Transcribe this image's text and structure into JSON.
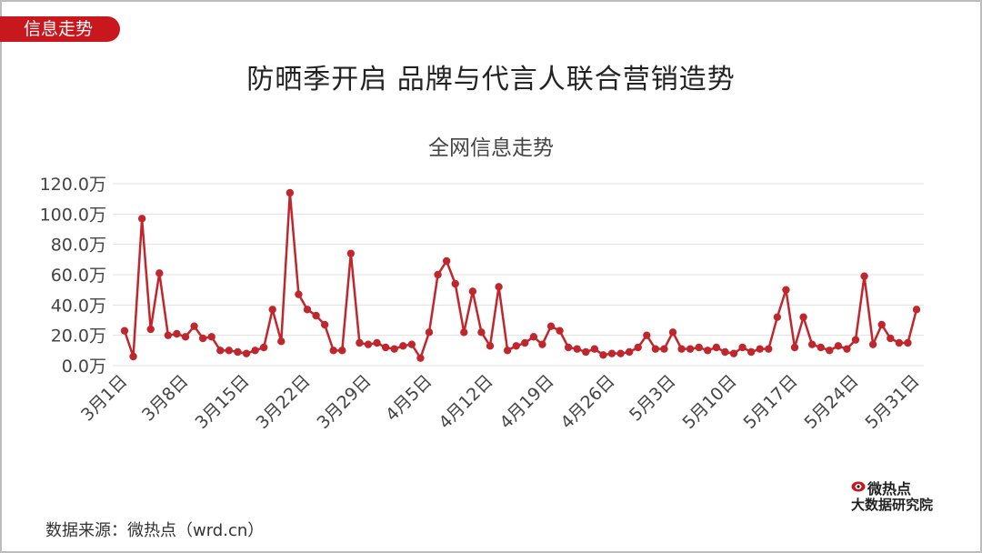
{
  "tag": "信息走势",
  "main_title": "防晒季开启 品牌与代言人联合营销造势",
  "source": "数据来源：微热点（wrd.cn）",
  "logo": {
    "top": "微热点",
    "bottom": "大数据研究院",
    "icon": "weibo-eye-icon"
  },
  "colors": {
    "accent": "#c8181e",
    "line": "#c0272d",
    "grid": "#e0e0e0"
  },
  "chart_data": {
    "type": "line",
    "title": "全网信息走势",
    "xlabel": "",
    "ylabel": "",
    "ylim": [
      0,
      120
    ],
    "y_ticks": [
      "0.0万",
      "20.0万",
      "40.0万",
      "60.0万",
      "80.0万",
      "100.0万",
      "120.0万"
    ],
    "x_ticks": [
      "3月1日",
      "3月8日",
      "3月15日",
      "3月22日",
      "3月29日",
      "4月5日",
      "4月12日",
      "4月19日",
      "4月26日",
      "5月3日",
      "5月10日",
      "5月17日",
      "5月24日",
      "5月31日"
    ],
    "grid": true,
    "legend": "none",
    "series": [
      {
        "unit": "万",
        "x": [
          "3月1日",
          "3月2日",
          "3月3日",
          "3月4日",
          "3月5日",
          "3月6日",
          "3月7日",
          "3月8日",
          "3月9日",
          "3月10日",
          "3月11日",
          "3月12日",
          "3月13日",
          "3月14日",
          "3月15日",
          "3月16日",
          "3月17日",
          "3月18日",
          "3月19日",
          "3月20日",
          "3月21日",
          "3月22日",
          "3月23日",
          "3月24日",
          "3月25日",
          "3月26日",
          "3月27日",
          "3月28日",
          "3月29日",
          "3月30日",
          "3月31日",
          "4月1日",
          "4月2日",
          "4月3日",
          "4月4日",
          "4月5日",
          "4月6日",
          "4月7日",
          "4月8日",
          "4月9日",
          "4月10日",
          "4月11日",
          "4月12日",
          "4月13日",
          "4月14日",
          "4月15日",
          "4月16日",
          "4月17日",
          "4月18日",
          "4月19日",
          "4月20日",
          "4月21日",
          "4月22日",
          "4月23日",
          "4月24日",
          "4月25日",
          "4月26日",
          "4月27日",
          "4月28日",
          "4月29日",
          "4月30日",
          "5月1日",
          "5月2日",
          "5月3日",
          "5月4日",
          "5月5日",
          "5月6日",
          "5月7日",
          "5月8日",
          "5月9日",
          "5月10日",
          "5月11日",
          "5月12日",
          "5月13日",
          "5月14日",
          "5月15日",
          "5月16日",
          "5月17日",
          "5月18日",
          "5月19日",
          "5月20日",
          "5月21日",
          "5月22日",
          "5月23日",
          "5月24日",
          "5月25日",
          "5月26日",
          "5月27日",
          "5月28日",
          "5月29日",
          "5月30日",
          "5月31日"
        ],
        "values": [
          23,
          6,
          97,
          24,
          61,
          20,
          21,
          19,
          26,
          18,
          19,
          10,
          10,
          9,
          8,
          10,
          12,
          37,
          16,
          114,
          47,
          37,
          33,
          27,
          10,
          10,
          74,
          15,
          14,
          15,
          12,
          11,
          13,
          14,
          5,
          22,
          60,
          69,
          54,
          22,
          49,
          22,
          13,
          52,
          10,
          13,
          15,
          19,
          14,
          26,
          23,
          12,
          11,
          9,
          11,
          7,
          8,
          8,
          9,
          12,
          20,
          11,
          11,
          22,
          11,
          11,
          12,
          10,
          12,
          9,
          8,
          12,
          9,
          11,
          11,
          32,
          50,
          12,
          32,
          14,
          12,
          10,
          13,
          11,
          17,
          59,
          14,
          27,
          18,
          15,
          15,
          37
        ]
      }
    ]
  }
}
